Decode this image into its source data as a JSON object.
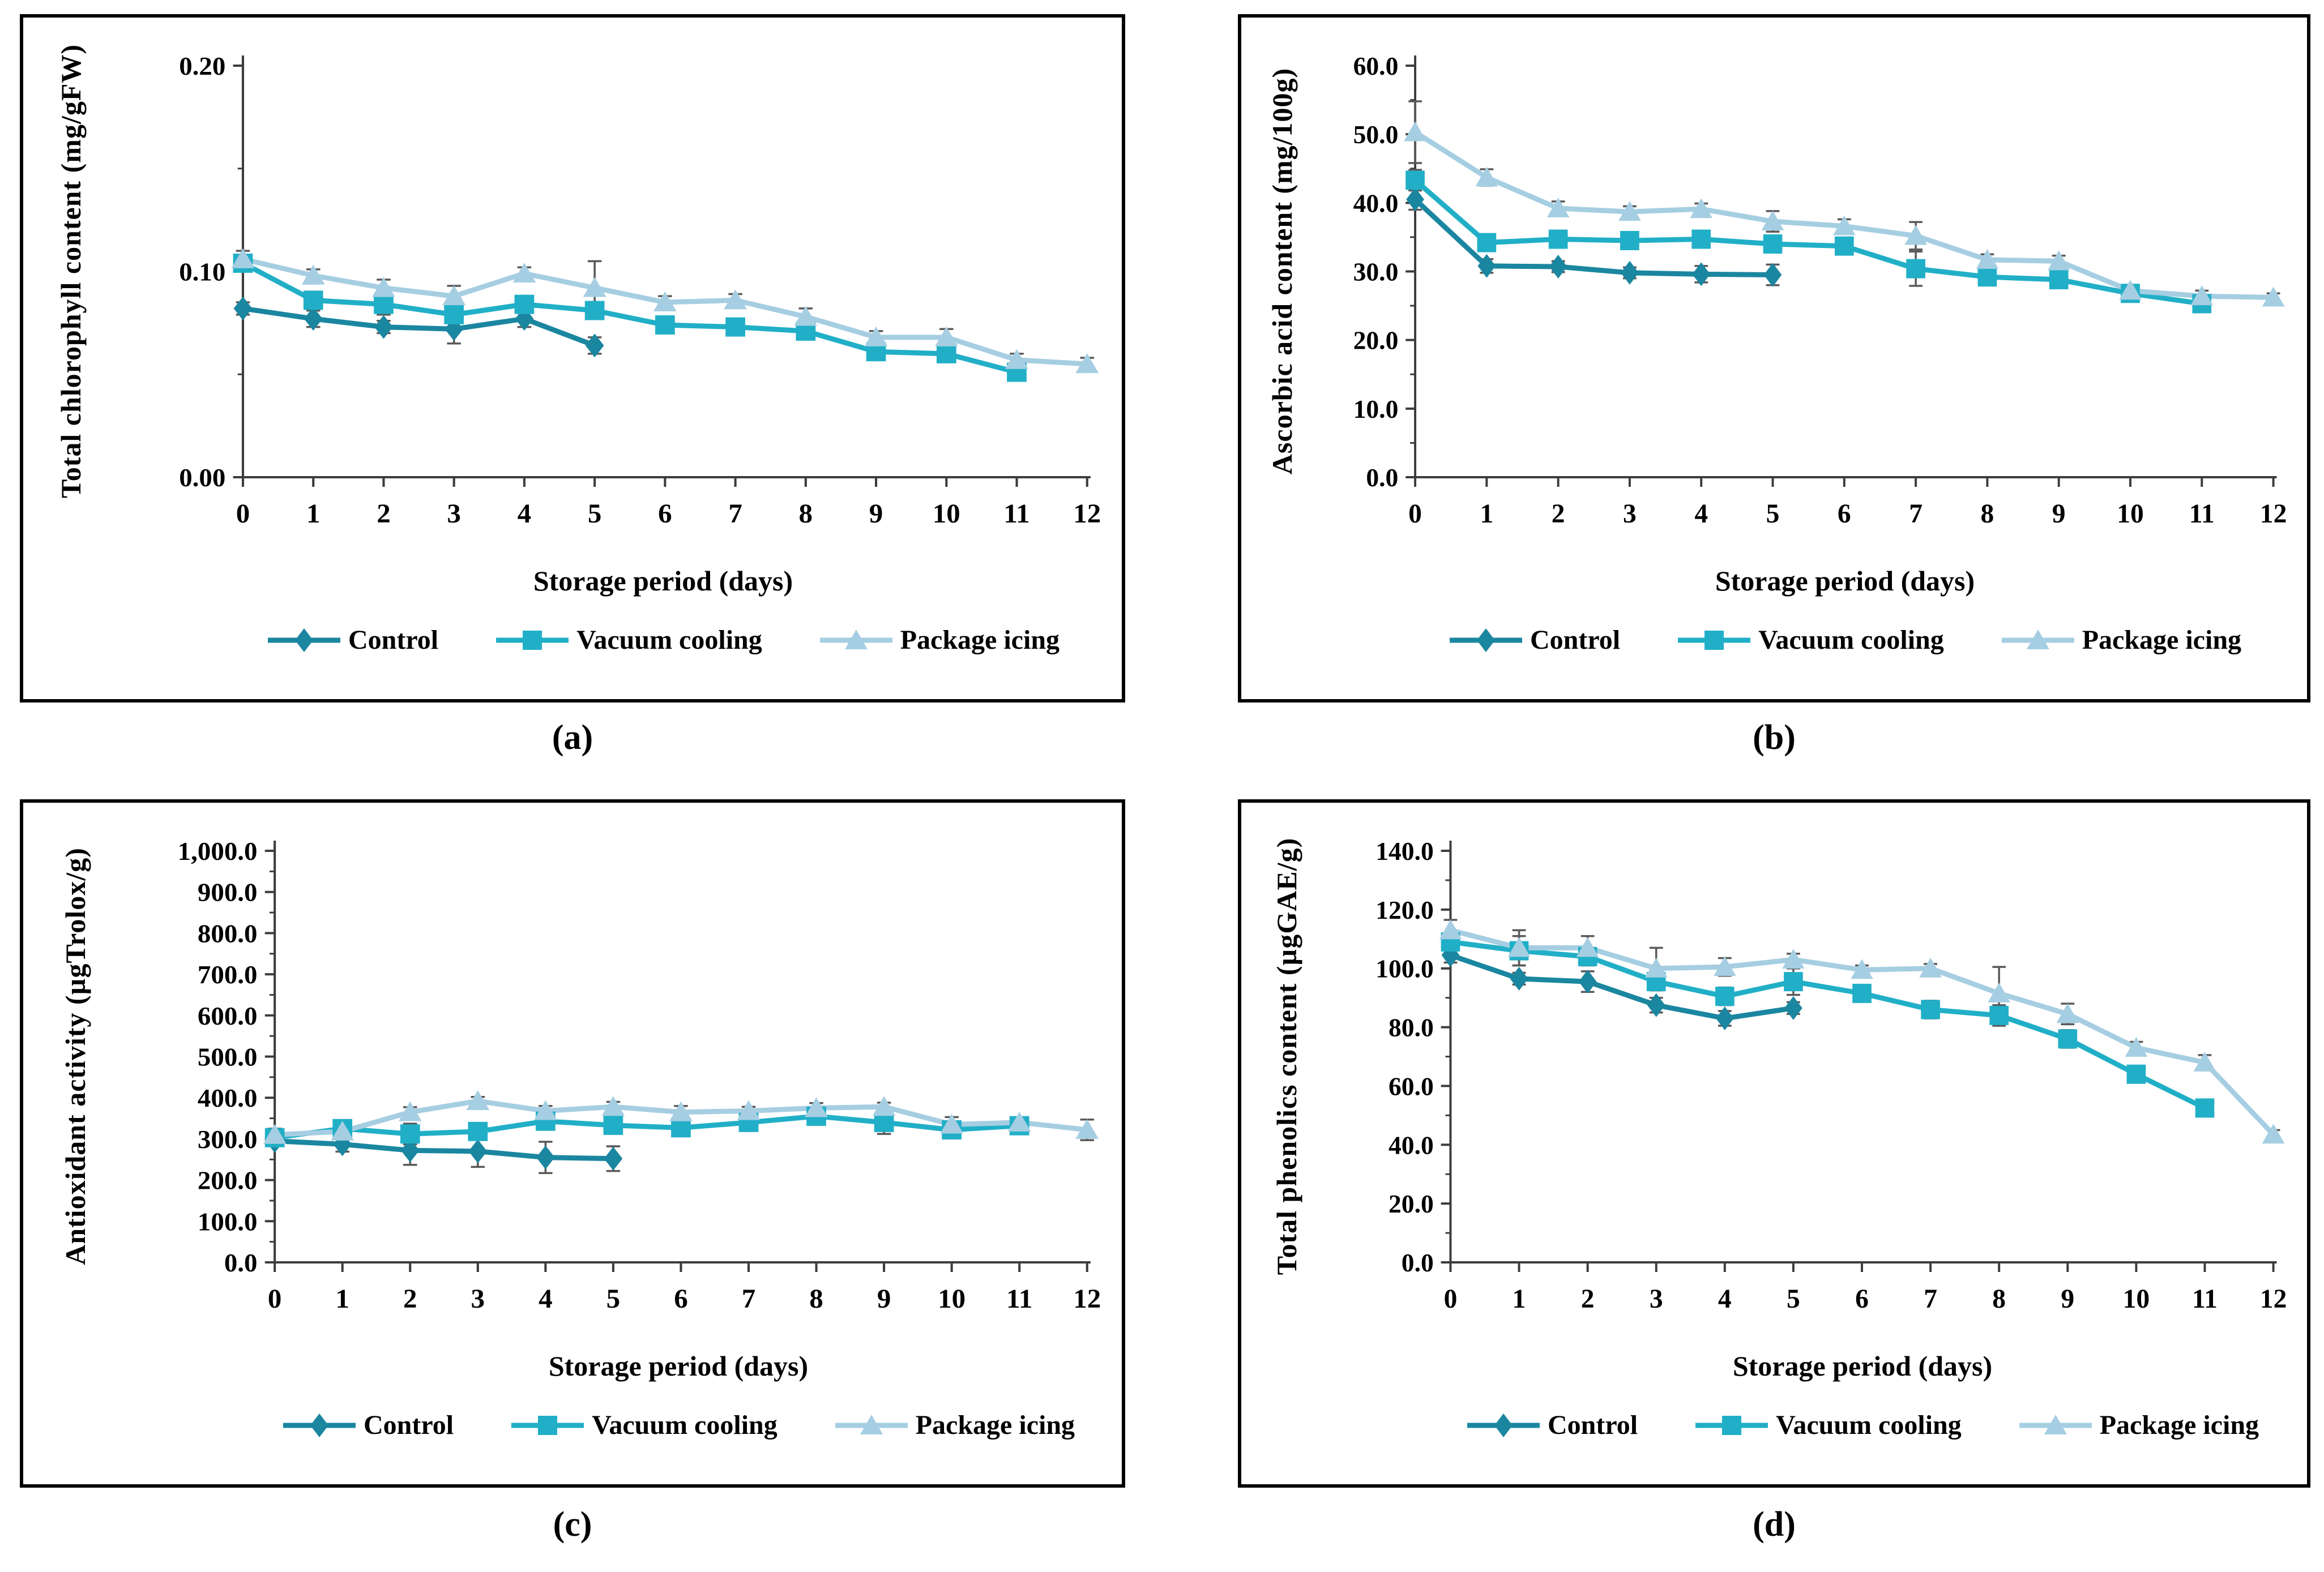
{
  "captions": [
    "(a)",
    "(b)",
    "(c)",
    "(d)"
  ],
  "colors": {
    "control": "#1B86A0",
    "vacuum_cooling": "#21AFC7",
    "package_icing": "#A6CEE2",
    "error_bar": "#595959",
    "axis": "#3C3C3C"
  },
  "chart_data": [
    {
      "id": "a",
      "type": "line",
      "ylabel": "Total chlorophyll content (mg/gFW)",
      "xlabel": "Storage period (days)",
      "ylim": [
        0,
        0.2
      ],
      "yticks": [
        0,
        0.1,
        0.2
      ],
      "ytick_labels": [
        "0.00",
        "0.10",
        "0.20"
      ],
      "yminor_step": 0.05,
      "x": [
        0,
        1,
        2,
        3,
        4,
        5,
        6,
        7,
        8,
        9,
        10,
        11,
        12
      ],
      "legend_position": "bottom",
      "grid": false,
      "series": [
        {
          "name": "Control",
          "marker": "diamond",
          "color": "#1B86A0",
          "x": [
            0,
            1,
            2,
            3,
            4,
            5
          ],
          "values": [
            0.082,
            0.077,
            0.073,
            0.072,
            0.077,
            0.064
          ],
          "errors": [
            0.003,
            0.004,
            0.003,
            0.007,
            0.004,
            0.004
          ]
        },
        {
          "name": "Vacuum cooling",
          "marker": "square",
          "color": "#21AFC7",
          "x": [
            0,
            1,
            2,
            3,
            4,
            5,
            6,
            7,
            8,
            9,
            10,
            11
          ],
          "values": [
            0.104,
            0.086,
            0.084,
            0.079,
            0.084,
            0.081,
            0.074,
            0.073,
            0.071,
            0.061,
            0.06,
            0.051
          ],
          "errors": [
            0.004,
            0.004,
            0.005,
            0.004,
            0.003,
            0.004,
            0.003,
            0.003,
            0.003,
            0.003,
            0.003,
            0.003
          ]
        },
        {
          "name": "Package icing",
          "marker": "triangle",
          "color": "#A6CEE2",
          "x": [
            0,
            1,
            2,
            3,
            4,
            5,
            6,
            7,
            8,
            9,
            10,
            11,
            12
          ],
          "values": [
            0.106,
            0.098,
            0.092,
            0.088,
            0.099,
            0.092,
            0.085,
            0.086,
            0.078,
            0.068,
            0.068,
            0.057,
            0.055
          ],
          "errors": [
            0.004,
            0.003,
            0.004,
            0.005,
            0.003,
            0.013,
            0.003,
            0.003,
            0.004,
            0.003,
            0.004,
            0.003,
            0.003
          ]
        }
      ]
    },
    {
      "id": "b",
      "type": "line",
      "ylabel": "Ascorbic acid content (mg/100g)",
      "xlabel": "Storage period (days)",
      "ylim": [
        0,
        60
      ],
      "yticks": [
        0,
        10,
        20,
        30,
        40,
        50,
        60
      ],
      "ytick_labels": [
        "0.0",
        "10.0",
        "20.0",
        "30.0",
        "40.0",
        "50.0",
        "60.0"
      ],
      "yminor_step": 5,
      "x": [
        0,
        1,
        2,
        3,
        4,
        5,
        6,
        7,
        8,
        9,
        10,
        11,
        12
      ],
      "legend_position": "bottom",
      "grid": false,
      "series": [
        {
          "name": "Control",
          "marker": "diamond",
          "color": "#1B86A0",
          "x": [
            0,
            1,
            2,
            3,
            4,
            5
          ],
          "values": [
            40.5,
            30.8,
            30.7,
            29.8,
            29.6,
            29.5
          ],
          "errors": [
            1.5,
            1.0,
            0.8,
            0.8,
            1.2,
            1.5
          ]
        },
        {
          "name": "Vacuum cooling",
          "marker": "square",
          "color": "#21AFC7",
          "x": [
            0,
            1,
            2,
            3,
            4,
            5,
            6,
            7,
            8,
            9,
            10,
            11
          ],
          "values": [
            43.3,
            34.2,
            34.7,
            34.5,
            34.7,
            34.0,
            33.7,
            30.4,
            29.2,
            28.8,
            26.8,
            25.3
          ],
          "errors": [
            1.5,
            1.0,
            1.0,
            0.8,
            1.0,
            1.2,
            0.8,
            2.5,
            1.0,
            1.0,
            0.6,
            0.6
          ]
        },
        {
          "name": "Package icing",
          "marker": "triangle",
          "color": "#A6CEE2",
          "x": [
            0,
            1,
            2,
            3,
            4,
            5,
            6,
            7,
            8,
            9,
            10,
            11,
            12
          ],
          "values": [
            50.3,
            43.7,
            39.2,
            38.7,
            39.1,
            37.3,
            36.6,
            35.2,
            31.7,
            31.5,
            27.2,
            26.4,
            26.2
          ],
          "errors": [
            4.5,
            1.2,
            1.0,
            0.8,
            0.8,
            1.5,
            1.0,
            2.0,
            0.8,
            0.8,
            0.6,
            0.8,
            0.6
          ]
        }
      ]
    },
    {
      "id": "c",
      "type": "line",
      "ylabel": "Antioxidant activity (µgTrolox/g)",
      "xlabel": "Storage period (days)",
      "ylim": [
        0,
        1000
      ],
      "yticks": [
        0,
        100,
        200,
        300,
        400,
        500,
        600,
        700,
        800,
        900,
        1000
      ],
      "ytick_labels": [
        "0.0",
        "100.0",
        "200.0",
        "300.0",
        "400.0",
        "500.0",
        "600.0",
        "700.0",
        "800.0",
        "900.0",
        "1,000.0"
      ],
      "yminor_step": 50,
      "x": [
        0,
        1,
        2,
        3,
        4,
        5,
        6,
        7,
        8,
        9,
        10,
        11,
        12
      ],
      "legend_position": "bottom",
      "grid": false,
      "series": [
        {
          "name": "Control",
          "marker": "diamond",
          "color": "#1B86A0",
          "x": [
            0,
            1,
            2,
            3,
            4,
            5
          ],
          "values": [
            295,
            287,
            272,
            270,
            255,
            252
          ],
          "errors": [
            10,
            18,
            35,
            38,
            38,
            30
          ]
        },
        {
          "name": "Vacuum cooling",
          "marker": "square",
          "color": "#21AFC7",
          "x": [
            0,
            1,
            2,
            3,
            4,
            5,
            6,
            7,
            8,
            9,
            10,
            11
          ],
          "values": [
            303,
            325,
            312,
            318,
            343,
            333,
            327,
            340,
            355,
            340,
            322,
            332
          ],
          "errors": [
            12,
            10,
            25,
            15,
            12,
            15,
            12,
            10,
            12,
            28,
            12,
            10
          ]
        },
        {
          "name": "Package icing",
          "marker": "triangle",
          "color": "#A6CEE2",
          "x": [
            0,
            1,
            2,
            3,
            4,
            5,
            6,
            7,
            8,
            9,
            10,
            11,
            12
          ],
          "values": [
            310,
            318,
            365,
            392,
            368,
            378,
            365,
            368,
            375,
            378,
            335,
            340,
            322
          ],
          "errors": [
            15,
            12,
            12,
            10,
            12,
            12,
            15,
            10,
            12,
            10,
            18,
            12,
            25
          ]
        }
      ]
    },
    {
      "id": "d",
      "type": "line",
      "ylabel": "Total phenolics content (µgGAE/g)",
      "xlabel": "Storage period (days)",
      "ylim": [
        0,
        140
      ],
      "yticks": [
        0,
        20,
        40,
        60,
        80,
        100,
        120,
        140
      ],
      "ytick_labels": [
        "0.0",
        "20.0",
        "40.0",
        "60.0",
        "80.0",
        "100.0",
        "120.0",
        "140.0"
      ],
      "yminor_step": 10,
      "x": [
        0,
        1,
        2,
        3,
        4,
        5,
        6,
        7,
        8,
        9,
        10,
        11,
        12
      ],
      "legend_position": "bottom",
      "grid": false,
      "series": [
        {
          "name": "Control",
          "marker": "diamond",
          "color": "#1B86A0",
          "x": [
            0,
            1,
            2,
            3,
            4,
            5
          ],
          "values": [
            104.5,
            96.5,
            95.5,
            87.5,
            83.0,
            86.5
          ],
          "errors": [
            2.5,
            2.0,
            3.5,
            2.5,
            2.5,
            2.0
          ]
        },
        {
          "name": "Vacuum cooling",
          "marker": "square",
          "color": "#21AFC7",
          "x": [
            0,
            1,
            2,
            3,
            4,
            5,
            6,
            7,
            8,
            9,
            10,
            11
          ],
          "values": [
            109.0,
            106.0,
            104.0,
            95.5,
            90.5,
            95.5,
            91.5,
            86.0,
            84.0,
            76.0,
            64.0,
            52.5
          ],
          "errors": [
            2.5,
            5.0,
            3.0,
            3.0,
            3.0,
            4.5,
            2.5,
            3.0,
            3.5,
            3.0,
            1.5,
            1.5
          ]
        },
        {
          "name": "Package icing",
          "marker": "triangle",
          "color": "#A6CEE2",
          "x": [
            0,
            1,
            2,
            3,
            4,
            5,
            6,
            7,
            8,
            9,
            10,
            11,
            12
          ],
          "values": [
            113.0,
            107.0,
            107.0,
            100.0,
            100.5,
            103.0,
            99.5,
            100.0,
            91.5,
            84.5,
            73.0,
            68.0,
            43.5
          ],
          "errors": [
            3.5,
            6.0,
            4.0,
            7.0,
            3.0,
            2.0,
            1.5,
            1.5,
            9.0,
            3.5,
            2.0,
            2.5,
            1.5
          ]
        }
      ]
    }
  ]
}
